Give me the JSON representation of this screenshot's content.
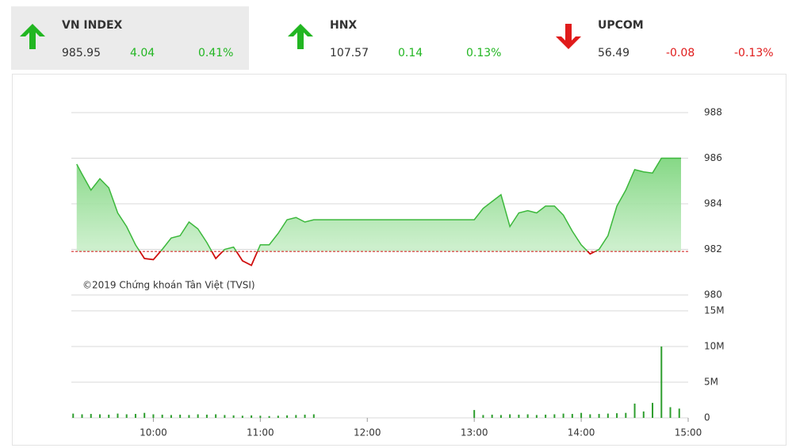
{
  "indices": [
    {
      "name": "VN INDEX",
      "value": 985.95,
      "change": 4.04,
      "percent": "0.41%",
      "direction": "up"
    },
    {
      "name": "HNX",
      "value": 107.57,
      "change": 0.14,
      "percent": "0.13%",
      "direction": "up"
    },
    {
      "name": "UPCOM",
      "value": 56.49,
      "change": -0.08,
      "percent": "-0.13%",
      "direction": "down"
    }
  ],
  "chart_data": [
    {
      "type": "line",
      "watermark": "©2019 Chứng khoán Tân Việt (TVSI)",
      "reference": 981.91,
      "color": "#3cb83c",
      "down_color": "#d01010",
      "reference_color": "#d01010",
      "x": [
        "09:17",
        "09:20",
        "09:25",
        "09:30",
        "09:35",
        "09:40",
        "09:45",
        "09:50",
        "09:55",
        "10:00",
        "10:05",
        "10:10",
        "10:15",
        "10:20",
        "10:25",
        "10:30",
        "10:35",
        "10:40",
        "10:45",
        "10:50",
        "10:55",
        "11:00",
        "11:05",
        "11:10",
        "11:15",
        "11:20",
        "11:25",
        "11:30",
        "13:00",
        "13:05",
        "13:10",
        "13:15",
        "13:20",
        "13:25",
        "13:30",
        "13:35",
        "13:40",
        "13:45",
        "13:50",
        "13:55",
        "14:00",
        "14:05",
        "14:10",
        "14:15",
        "14:20",
        "14:25",
        "14:30",
        "14:35",
        "14:40",
        "14:45",
        "14:56"
      ],
      "values": [
        985.74,
        985.3,
        984.6,
        985.1,
        984.7,
        983.6,
        983.0,
        982.2,
        981.6,
        981.55,
        982.0,
        982.5,
        982.6,
        983.2,
        982.9,
        982.3,
        981.6,
        982.0,
        982.1,
        981.5,
        981.3,
        982.2,
        982.2,
        982.7,
        983.3,
        983.4,
        983.2,
        983.3,
        983.3,
        983.8,
        984.1,
        984.4,
        983.0,
        983.6,
        983.7,
        983.6,
        983.9,
        983.9,
        983.5,
        982.8,
        982.2,
        981.8,
        982.0,
        982.6,
        983.9,
        984.6,
        985.5,
        985.4,
        985.35,
        986.0,
        986.0
      ],
      "xlim": [
        "09:14",
        "15:00"
      ],
      "ylim": [
        980,
        988
      ],
      "yticks": [
        980,
        982,
        984,
        986,
        988
      ],
      "grid": true
    },
    {
      "type": "bar",
      "color": "#2e9e2e",
      "x": [
        "09:15",
        "09:20",
        "09:25",
        "09:30",
        "09:35",
        "09:40",
        "09:45",
        "09:50",
        "09:55",
        "10:00",
        "10:05",
        "10:10",
        "10:15",
        "10:20",
        "10:25",
        "10:30",
        "10:35",
        "10:40",
        "10:45",
        "10:50",
        "10:55",
        "11:00",
        "11:05",
        "11:10",
        "11:15",
        "11:20",
        "11:25",
        "11:30",
        "13:00",
        "13:05",
        "13:10",
        "13:15",
        "13:20",
        "13:25",
        "13:30",
        "13:35",
        "13:40",
        "13:45",
        "13:50",
        "13:55",
        "14:00",
        "14:05",
        "14:10",
        "14:15",
        "14:20",
        "14:25",
        "14:30",
        "14:35",
        "14:40",
        "14:45",
        "14:50",
        "14:55"
      ],
      "values": [
        600000,
        500000,
        550000,
        500000,
        450000,
        600000,
        500000,
        550000,
        700000,
        500000,
        450000,
        400000,
        450000,
        400000,
        500000,
        450000,
        500000,
        400000,
        350000,
        300000,
        350000,
        300000,
        250000,
        300000,
        350000,
        400000,
        450000,
        500000,
        1100000,
        400000,
        450000,
        400000,
        500000,
        450000,
        500000,
        400000,
        450000,
        500000,
        600000,
        550000,
        700000,
        500000,
        550000,
        600000,
        650000,
        700000,
        2000000,
        900000,
        2100000,
        10000000,
        1500000,
        1300000
      ],
      "xlim": [
        "09:14",
        "15:00"
      ],
      "ylim": [
        0,
        15000000
      ],
      "yticks": [
        0,
        {
          "value": 5000000,
          "label": "5M"
        },
        {
          "value": 10000000,
          "label": "10M"
        },
        {
          "value": 15000000,
          "label": "15M"
        }
      ],
      "xticks": [
        "10:00",
        "11:00",
        "12:00",
        "13:00",
        "14:00",
        "15:00"
      ],
      "grid": true
    }
  ]
}
